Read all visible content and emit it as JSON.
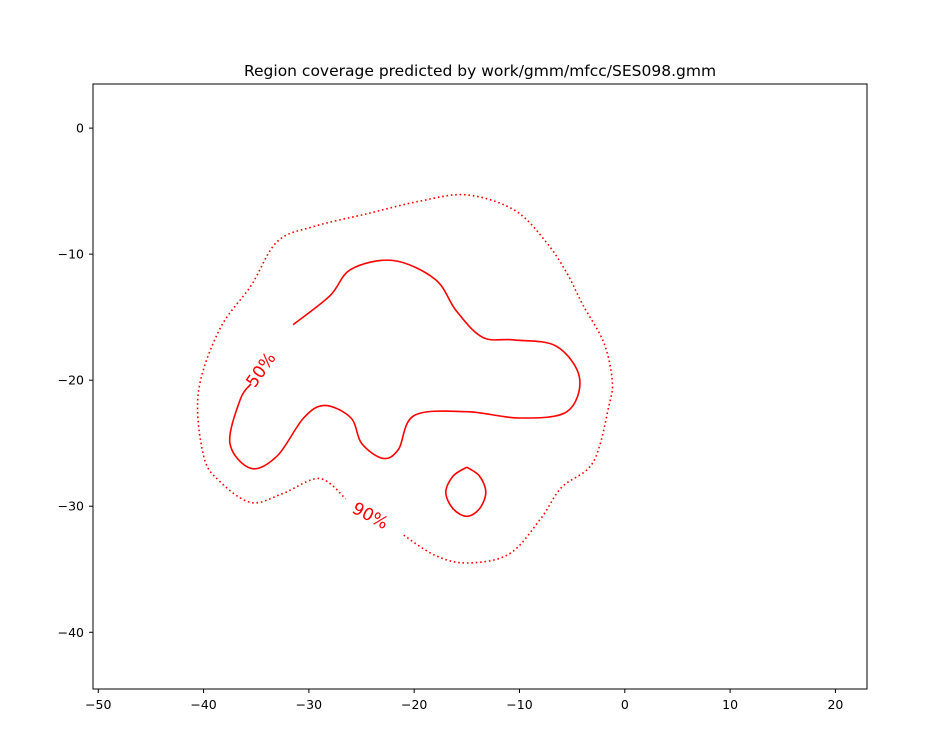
{
  "chart_data": {
    "type": "contour",
    "title": "Region coverage predicted by work/gmm/mfcc/SES098.gmm",
    "xlim": [
      -50.5,
      23
    ],
    "ylim": [
      -44.5,
      3.5
    ],
    "xticks": [
      -50,
      -40,
      -30,
      -20,
      -10,
      0,
      10,
      20
    ],
    "xtick_labels": [
      "−50",
      "−40",
      "−30",
      "−20",
      "−10",
      "0",
      "10",
      "20"
    ],
    "yticks": [
      0,
      -10,
      -20,
      -30,
      -40
    ],
    "ytick_labels": [
      "0",
      "−10",
      "−20",
      "−30",
      "−40"
    ],
    "grid": false,
    "color": "#ff0000",
    "levels": [
      {
        "label": "50%",
        "style": "solid",
        "label_position": [
          -34.5,
          -19.2
        ],
        "label_rotation": -55,
        "paths": [
          [
            [
              -31.5,
              -15.6
            ],
            [
              -28.0,
              -13.3
            ],
            [
              -26.0,
              -11.2
            ],
            [
              -22.0,
              -10.5
            ],
            [
              -18.0,
              -12.0
            ],
            [
              -16.0,
              -14.5
            ],
            [
              -13.5,
              -16.6
            ],
            [
              -10.5,
              -16.8
            ],
            [
              -6.5,
              -17.3
            ],
            [
              -4.3,
              -19.8
            ],
            [
              -5.5,
              -22.5
            ],
            [
              -10.0,
              -23.0
            ],
            [
              -15.0,
              -22.5
            ],
            [
              -20.0,
              -22.8
            ],
            [
              -21.5,
              -25.5
            ],
            [
              -23.0,
              -26.2
            ],
            [
              -25.0,
              -25.0
            ],
            [
              -26.0,
              -23.0
            ],
            [
              -28.5,
              -22.0
            ],
            [
              -30.5,
              -23.0
            ],
            [
              -33.0,
              -26.0
            ],
            [
              -35.5,
              -27.0
            ],
            [
              -37.5,
              -25.0
            ],
            [
              -36.5,
              -21.5
            ],
            [
              -35.5,
              -20.3
            ]
          ],
          [
            [
              -15.0,
              -26.9
            ],
            [
              -13.8,
              -27.6
            ],
            [
              -13.2,
              -28.9
            ],
            [
              -13.8,
              -30.2
            ],
            [
              -15.0,
              -30.8
            ],
            [
              -16.3,
              -30.2
            ],
            [
              -17.0,
              -28.9
            ],
            [
              -16.3,
              -27.6
            ],
            [
              -15.0,
              -26.9
            ]
          ]
        ]
      },
      {
        "label": "90%",
        "style": "dotted",
        "label_position": [
          -24.2,
          -30.8
        ],
        "label_rotation": 28,
        "paths": [
          [
            [
              -21.0,
              -32.3
            ],
            [
              -18.0,
              -33.9
            ],
            [
              -15.0,
              -34.5
            ],
            [
              -11.0,
              -33.8
            ],
            [
              -8.0,
              -31.0
            ],
            [
              -6.0,
              -28.5
            ],
            [
              -3.0,
              -26.5
            ],
            [
              -1.5,
              -22.0
            ],
            [
              -1.2,
              -20.0
            ],
            [
              -2.0,
              -17.0
            ],
            [
              -4.0,
              -14.0
            ],
            [
              -5.5,
              -11.5
            ],
            [
              -7.5,
              -9.0
            ],
            [
              -10.5,
              -6.5
            ],
            [
              -15.0,
              -5.3
            ],
            [
              -19.5,
              -5.8
            ],
            [
              -24.5,
              -6.8
            ],
            [
              -29.5,
              -7.8
            ],
            [
              -33.0,
              -9.0
            ],
            [
              -35.5,
              -12.5
            ],
            [
              -38.5,
              -16.0
            ],
            [
              -40.5,
              -21.0
            ],
            [
              -40.0,
              -26.0
            ],
            [
              -38.5,
              -28.0
            ],
            [
              -35.5,
              -29.7
            ],
            [
              -32.5,
              -29.0
            ],
            [
              -29.0,
              -27.8
            ],
            [
              -26.5,
              -29.4
            ]
          ]
        ]
      }
    ]
  }
}
